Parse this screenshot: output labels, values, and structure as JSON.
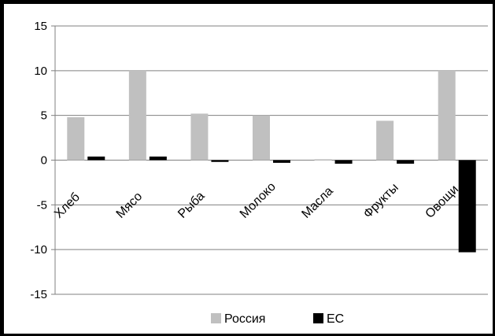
{
  "chart_data": {
    "type": "bar",
    "categories": [
      "Хлеб",
      "Мясо",
      "Рыба",
      "Молоко",
      "Масла",
      "Фрукты",
      "Овощи"
    ],
    "series": [
      {
        "name": "Россия",
        "color": "#c0c0c0",
        "values": [
          4.8,
          10.0,
          5.2,
          5.0,
          0.1,
          4.4,
          10.0
        ]
      },
      {
        "name": "ЕС",
        "color": "#000000",
        "values": [
          0.4,
          0.4,
          -0.2,
          -0.3,
          -0.4,
          -0.4,
          -10.3
        ]
      }
    ],
    "ylim": [
      -15,
      15
    ],
    "yticks": [
      15,
      10,
      5,
      0,
      -5,
      -10,
      -15
    ],
    "grid": true,
    "legend": "bottom"
  }
}
